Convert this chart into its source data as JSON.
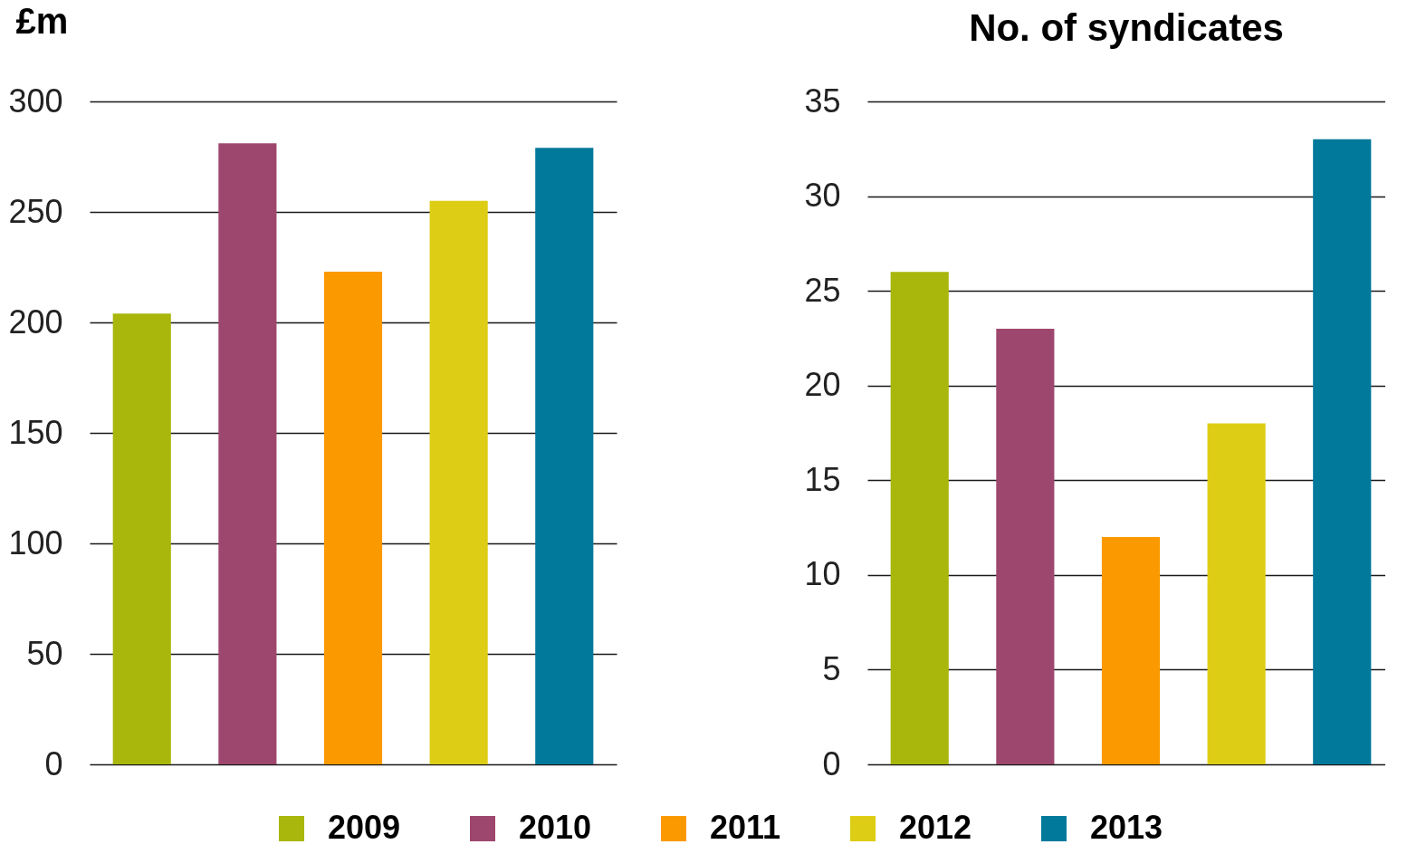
{
  "chart_data": [
    {
      "type": "bar",
      "ylabel": "£m",
      "categories": [
        null
      ],
      "series": [
        {
          "name": "2009",
          "color": "#a9b60b",
          "values": [
            204
          ]
        },
        {
          "name": "2010",
          "color": "#9e476e",
          "values": [
            281
          ]
        },
        {
          "name": "2011",
          "color": "#fb9900",
          "values": [
            223
          ]
        },
        {
          "name": "2012",
          "color": "#decd15",
          "values": [
            255
          ]
        },
        {
          "name": "2013",
          "color": "#00799b",
          "values": [
            279
          ]
        }
      ],
      "ylim": [
        0,
        300
      ],
      "yticks": [
        0,
        50,
        100,
        150,
        200,
        250,
        300
      ],
      "grid": "y",
      "legend": "bottom",
      "tick_labels": "y"
    },
    {
      "type": "bar",
      "title": "No. of syndicates",
      "categories": [
        null
      ],
      "series": [
        {
          "name": "2009",
          "color": "#a9b60b",
          "values": [
            26
          ]
        },
        {
          "name": "2010",
          "color": "#9e476e",
          "values": [
            23
          ]
        },
        {
          "name": "2011",
          "color": "#fb9900",
          "values": [
            12
          ]
        },
        {
          "name": "2012",
          "color": "#decd15",
          "values": [
            18
          ]
        },
        {
          "name": "2013",
          "color": "#00799b",
          "values": [
            33
          ]
        }
      ],
      "ylim": [
        0,
        35
      ],
      "yticks": [
        0,
        5,
        10,
        15,
        20,
        25,
        30,
        35
      ],
      "grid": "y",
      "legend": "bottom",
      "tick_labels": "y"
    }
  ]
}
